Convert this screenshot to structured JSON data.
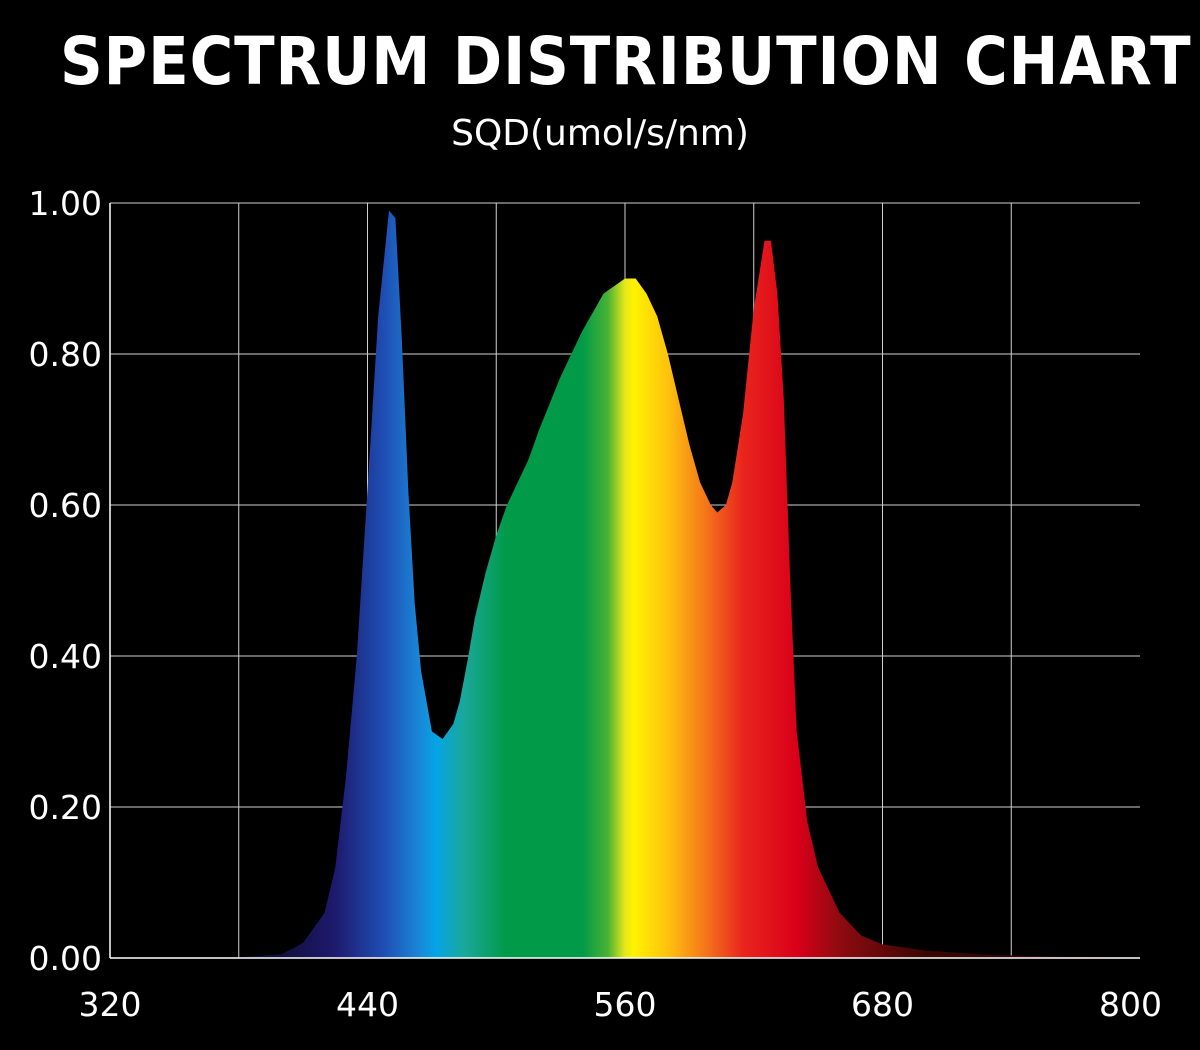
{
  "chart_data": {
    "type": "area",
    "title": "SPECTRUM DISTRIBUTION CHART",
    "subtitle": "SQD(umol/s/nm)",
    "xlabel": "",
    "ylabel": "",
    "xlim": [
      320,
      800
    ],
    "ylim": [
      0,
      1.0
    ],
    "x_ticks": [
      320,
      440,
      560,
      680,
      800
    ],
    "x_tick_labels": [
      "320",
      "440",
      "560",
      "680",
      "800"
    ],
    "y_ticks": [
      0,
      0.2,
      0.4,
      0.6,
      0.8,
      1.0
    ],
    "y_tick_labels": [
      "0.00",
      "0.20",
      "0.40",
      "0.60",
      "0.80",
      "1.00"
    ],
    "x_grid_step": 60,
    "grid": true,
    "legend": "none",
    "fill": "visible-spectrum gradient",
    "series": [
      {
        "x": [
          320,
          380,
          400,
          410,
          420,
          425,
          430,
          435,
          440,
          445,
          450,
          453,
          456,
          459,
          462,
          465,
          470,
          475,
          480,
          483,
          487,
          490,
          495,
          500,
          505,
          510,
          515,
          520,
          530,
          540,
          550,
          560,
          565,
          570,
          575,
          580,
          585,
          590,
          595,
          600,
          603,
          607,
          610,
          615,
          620,
          625,
          628,
          631,
          634,
          637,
          640,
          645,
          650,
          660,
          670,
          680,
          700,
          730,
          760,
          800
        ],
        "y": [
          0.0,
          0.001,
          0.005,
          0.02,
          0.06,
          0.12,
          0.24,
          0.4,
          0.62,
          0.85,
          0.99,
          0.98,
          0.82,
          0.62,
          0.47,
          0.38,
          0.3,
          0.29,
          0.31,
          0.34,
          0.4,
          0.45,
          0.51,
          0.56,
          0.6,
          0.63,
          0.66,
          0.7,
          0.77,
          0.83,
          0.88,
          0.9,
          0.9,
          0.88,
          0.85,
          0.8,
          0.74,
          0.68,
          0.63,
          0.6,
          0.59,
          0.6,
          0.63,
          0.72,
          0.86,
          0.95,
          0.95,
          0.88,
          0.74,
          0.5,
          0.3,
          0.18,
          0.12,
          0.06,
          0.03,
          0.018,
          0.01,
          0.004,
          0.002,
          0.001
        ]
      }
    ],
    "spectrum_stops": [
      {
        "x": 320,
        "color": "#050510"
      },
      {
        "x": 400,
        "color": "#120f3d"
      },
      {
        "x": 425,
        "color": "#1e1a6e"
      },
      {
        "x": 448,
        "color": "#1e4fb5"
      },
      {
        "x": 464,
        "color": "#1a86d6"
      },
      {
        "x": 472,
        "color": "#05a4e6"
      },
      {
        "x": 485,
        "color": "#1aa89a"
      },
      {
        "x": 505,
        "color": "#009a48"
      },
      {
        "x": 540,
        "color": "#009a48"
      },
      {
        "x": 552,
        "color": "#49b234"
      },
      {
        "x": 560,
        "color": "#e6e81a"
      },
      {
        "x": 564,
        "color": "#fff200"
      },
      {
        "x": 580,
        "color": "#ffc20e"
      },
      {
        "x": 600,
        "color": "#f26b1c"
      },
      {
        "x": 615,
        "color": "#e8251c"
      },
      {
        "x": 640,
        "color": "#d90019"
      },
      {
        "x": 660,
        "color": "#8e0b10"
      },
      {
        "x": 700,
        "color": "#3a0604"
      },
      {
        "x": 800,
        "color": "#2a0503"
      }
    ]
  }
}
